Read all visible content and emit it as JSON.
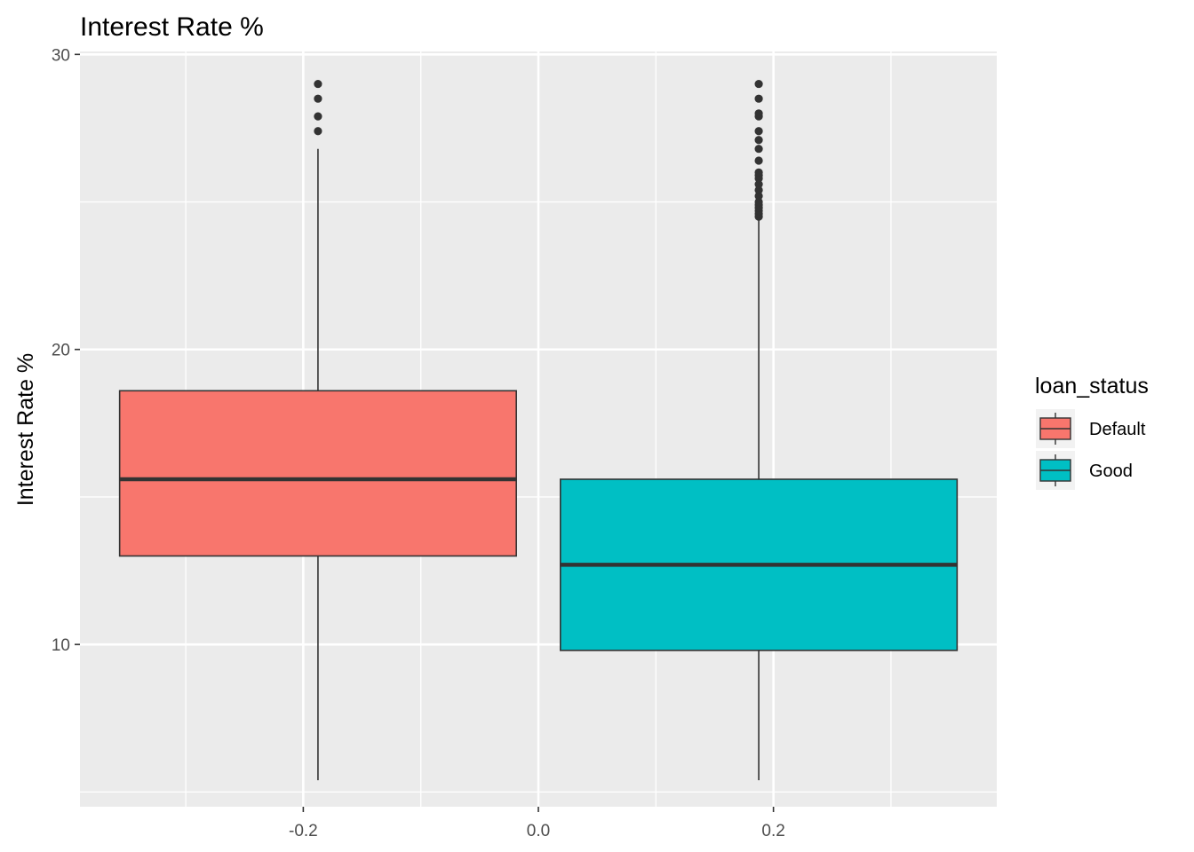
{
  "chart_data": {
    "type": "boxplot",
    "title": "Interest Rate %",
    "ylabel": "Interest Rate %",
    "xlabel": "",
    "xlim": [
      -0.39,
      0.39
    ],
    "ylim": [
      4.5,
      30.1
    ],
    "x_ticks": [
      -0.2,
      0.0,
      0.2
    ],
    "x_tick_labels": [
      "-0.2",
      "0.0",
      "0.2"
    ],
    "y_ticks": [
      10,
      20,
      30
    ],
    "y_tick_labels": [
      "10",
      "20",
      "30"
    ],
    "grid": true,
    "legend": {
      "title": "loan_status",
      "placement": "right",
      "entries": [
        "Default",
        "Good"
      ]
    },
    "series": [
      {
        "name": "Default",
        "color": "#F8766D",
        "x_center": -0.1875,
        "box_width": 0.3375,
        "whisker_low": 5.4,
        "q1": 13.0,
        "median": 15.6,
        "q3": 18.6,
        "whisker_high": 26.8,
        "outliers": [
          27.4,
          27.9,
          28.5,
          29.0
        ]
      },
      {
        "name": "Good",
        "color": "#00BFC4",
        "x_center": 0.1875,
        "box_width": 0.3375,
        "whisker_low": 5.4,
        "q1": 9.8,
        "median": 12.7,
        "q3": 15.6,
        "whisker_high": 24.4,
        "outliers": [
          24.5,
          24.6,
          24.7,
          24.8,
          24.9,
          25.0,
          25.2,
          25.4,
          25.6,
          25.8,
          25.9,
          26.0,
          26.4,
          26.8,
          27.1,
          27.4,
          27.9,
          28.0,
          28.5,
          29.0
        ]
      }
    ]
  },
  "colors": {
    "panel_background": "#EBEBEB",
    "grid_major": "#FFFFFF",
    "box_outline": "#333333"
  }
}
